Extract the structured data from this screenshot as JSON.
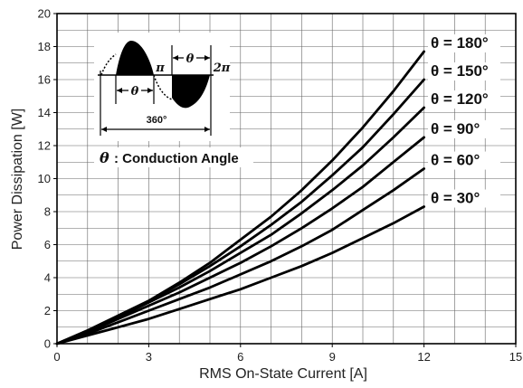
{
  "chart_data": {
    "type": "line",
    "xlabel": "RMS On-State Current [A]",
    "ylabel": "Power Dissipation [W]",
    "xlim": [
      0,
      15
    ],
    "ylim": [
      0,
      20
    ],
    "xticks": [
      0,
      3,
      6,
      9,
      12,
      15
    ],
    "yticks": [
      0,
      2,
      4,
      6,
      8,
      10,
      12,
      14,
      16,
      18,
      20
    ],
    "grid": true,
    "x": [
      0,
      1,
      2,
      3,
      4,
      5,
      6,
      7,
      8,
      9,
      10,
      11,
      12
    ],
    "series": [
      {
        "name": "θ = 180°",
        "values": [
          0,
          0.8,
          1.7,
          2.6,
          3.7,
          4.9,
          6.3,
          7.7,
          9.3,
          11.1,
          13.1,
          15.3,
          17.7
        ]
      },
      {
        "name": "θ = 150°",
        "values": [
          0,
          0.8,
          1.7,
          2.6,
          3.6,
          4.7,
          5.9,
          7.2,
          8.6,
          10.2,
          11.9,
          13.9,
          16.0
        ]
      },
      {
        "name": "θ = 120°",
        "values": [
          0,
          0.75,
          1.6,
          2.5,
          3.4,
          4.4,
          5.5,
          6.6,
          7.9,
          9.3,
          10.8,
          12.5,
          14.3
        ]
      },
      {
        "name": "θ = 90°",
        "values": [
          0,
          0.7,
          1.5,
          2.3,
          3.1,
          4.0,
          4.9,
          5.9,
          7.0,
          8.2,
          9.5,
          11.0,
          12.5
        ]
      },
      {
        "name": "θ = 60°",
        "values": [
          0,
          0.6,
          1.3,
          2.0,
          2.7,
          3.4,
          4.2,
          5.0,
          5.9,
          6.9,
          8.1,
          9.3,
          10.6
        ]
      },
      {
        "name": "θ = 30°",
        "values": [
          0,
          0.5,
          1.0,
          1.5,
          2.1,
          2.7,
          3.3,
          4.0,
          4.7,
          5.5,
          6.4,
          7.3,
          8.3
        ]
      }
    ],
    "inset": {
      "pi_label": "π",
      "two_pi_label": "2π",
      "theta_symbol": "θ",
      "period_label": "360°",
      "legend_text": ": Conduction Angle"
    }
  }
}
